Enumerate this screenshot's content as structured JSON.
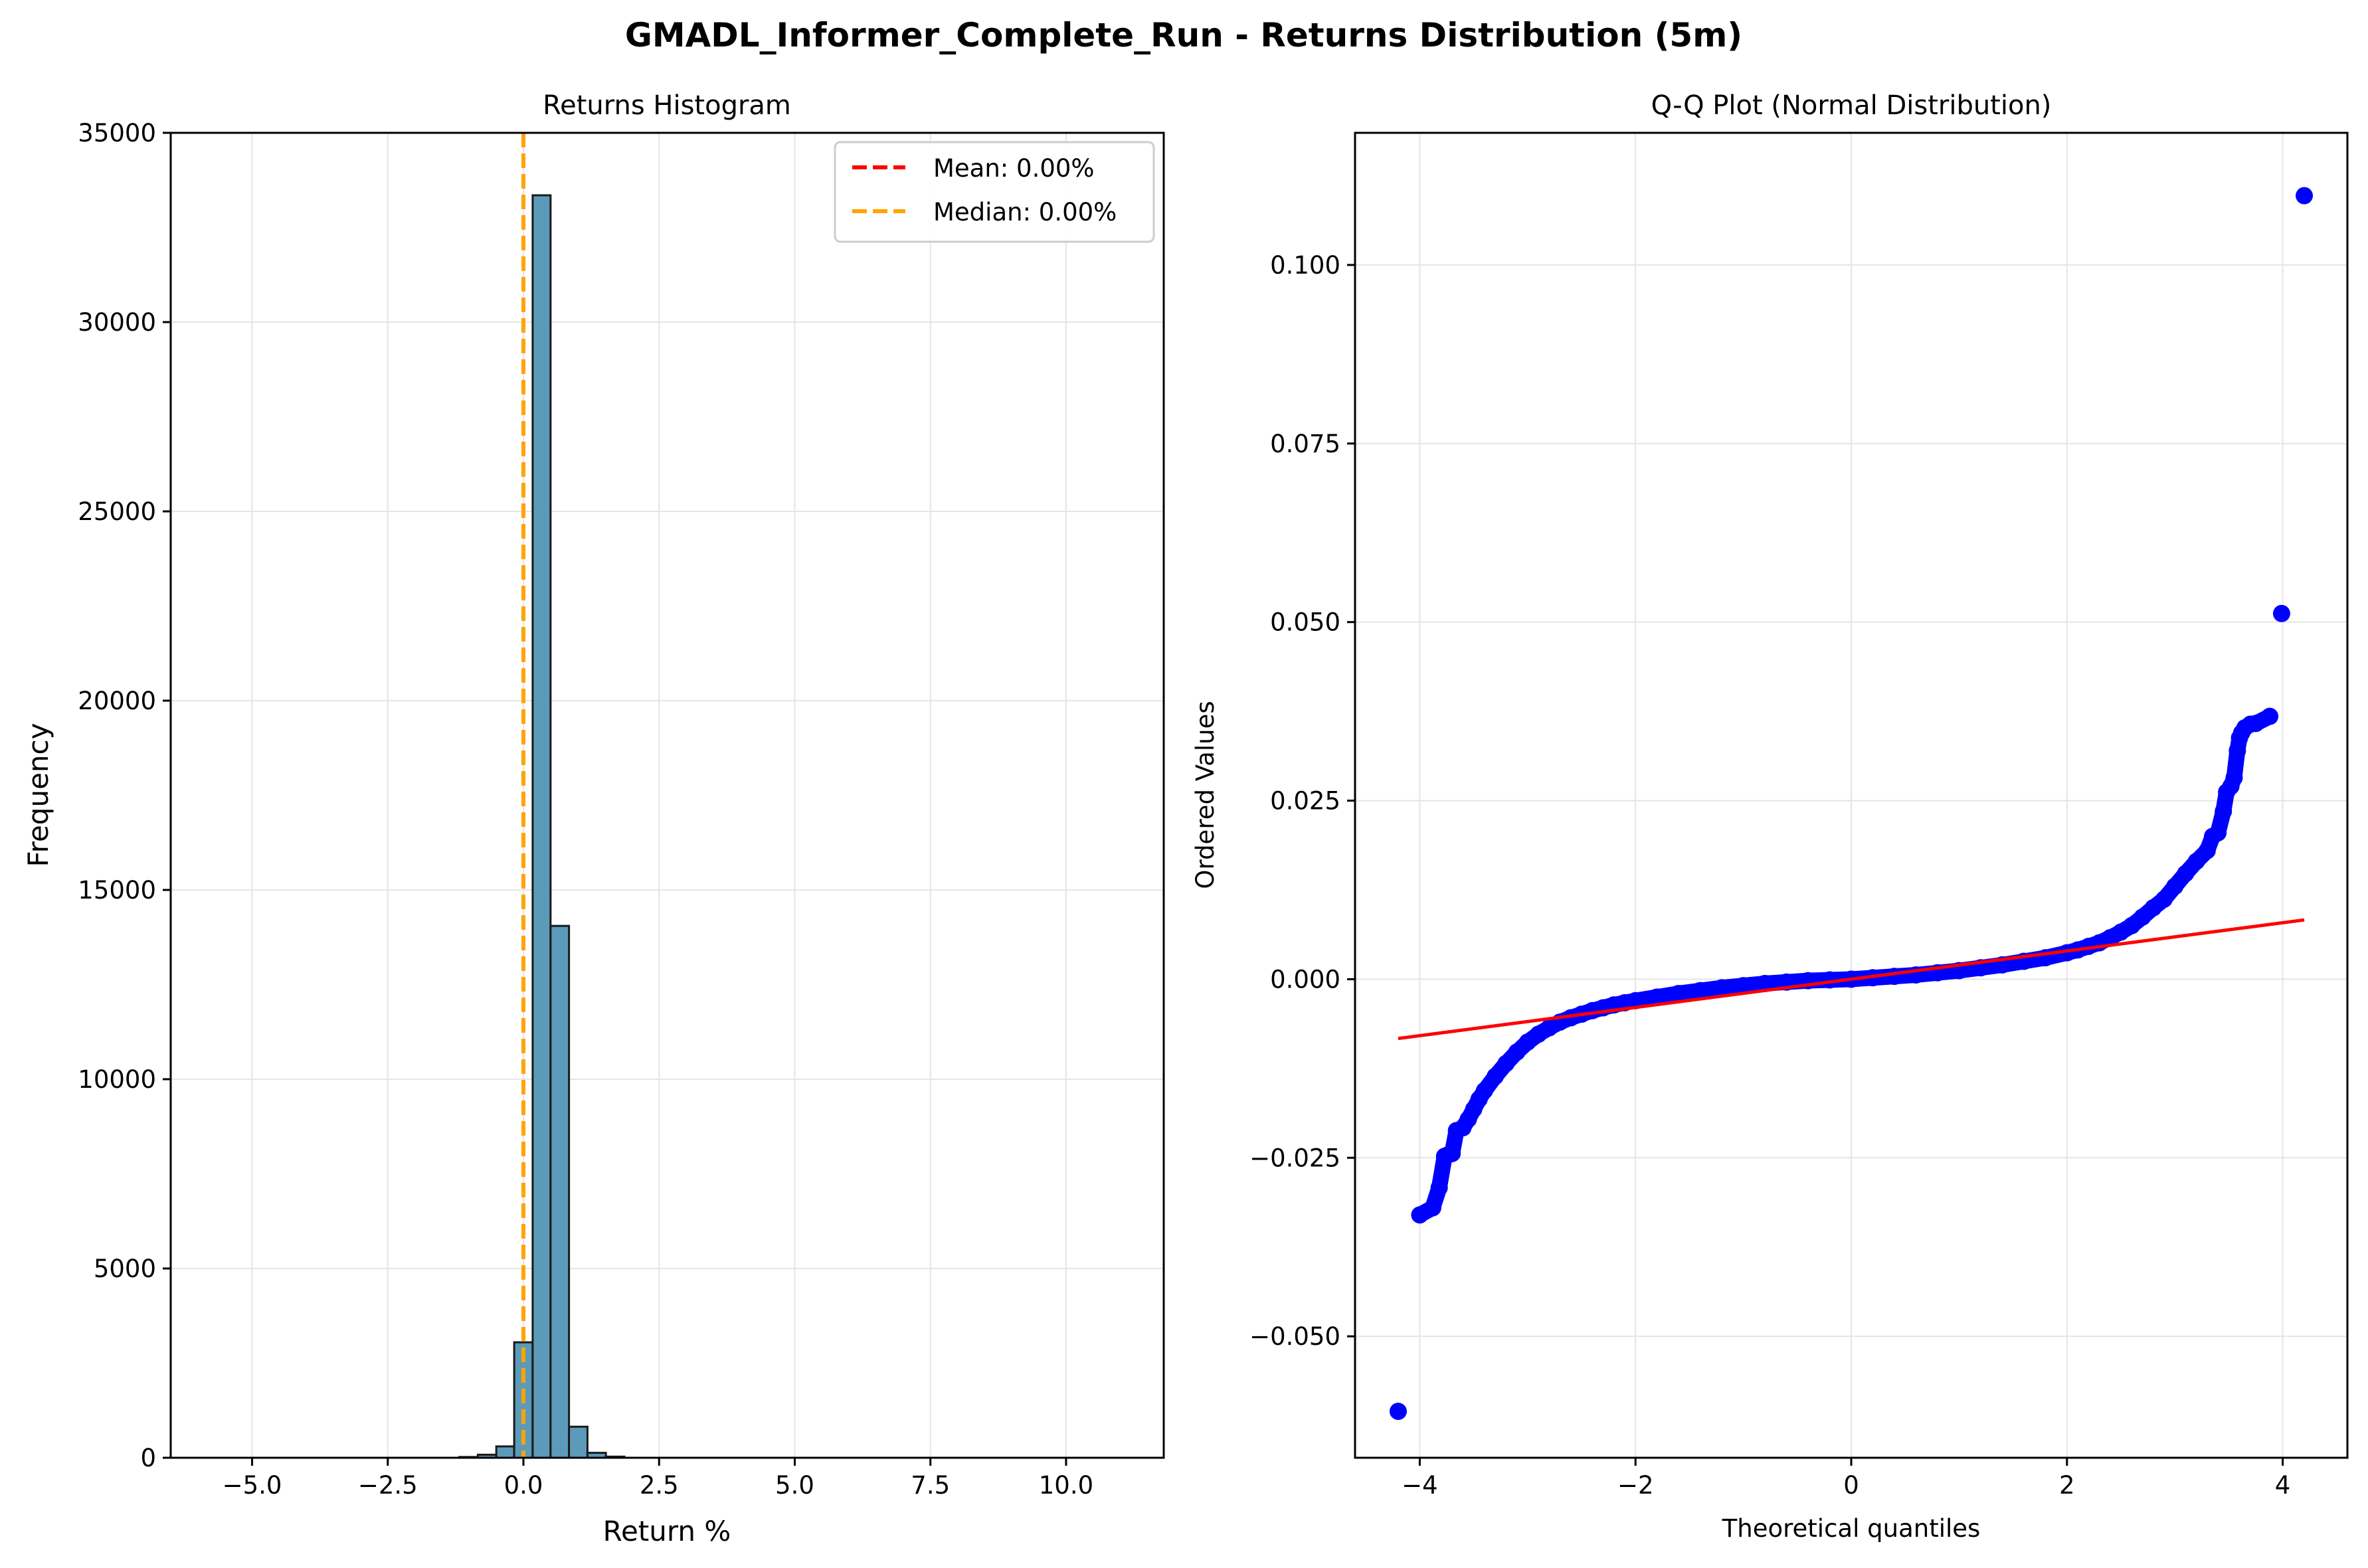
{
  "figure_title": "GMADL_Informer_Complete_Run - Returns Distribution (5m)",
  "colors": {
    "hist_fill": "#5b9bb9",
    "hist_edge": "#1a1a1a",
    "mean_line": "#ff0000",
    "median_line": "#ffa500",
    "qq_points": "#0000ff",
    "qq_fit": "#ff0000",
    "grid": "#e5e5e5"
  },
  "chart_data": [
    {
      "type": "bar",
      "title": "Returns Histogram",
      "xlabel": "Return %",
      "ylabel": "Frequency",
      "xlim": [
        -6.5,
        11.8
      ],
      "ylim": [
        0,
        35000
      ],
      "xticks": [
        -5.0,
        -2.5,
        0.0,
        2.5,
        5.0,
        7.5,
        10.0
      ],
      "xtick_labels": [
        "−5.0",
        "−2.5",
        "0.0",
        "2.5",
        "5.0",
        "7.5",
        "10.0"
      ],
      "yticks": [
        0,
        5000,
        10000,
        15000,
        20000,
        25000,
        30000,
        35000
      ],
      "ytick_labels": [
        "0",
        "5000",
        "10000",
        "15000",
        "20000",
        "25000",
        "30000",
        "35000"
      ],
      "grid": true,
      "legend_position": "top-right",
      "bins": [
        {
          "x0": -1.18,
          "x1": -0.84,
          "value": 20
        },
        {
          "x0": -0.84,
          "x1": -0.5,
          "value": 80
        },
        {
          "x0": -0.5,
          "x1": -0.17,
          "value": 300
        },
        {
          "x0": -0.17,
          "x1": 0.17,
          "value": 3050
        },
        {
          "x0": 0.17,
          "x1": 0.5,
          "value": 33350
        },
        {
          "x0": 0.5,
          "x1": 0.84,
          "value": 14050
        },
        {
          "x0": 0.84,
          "x1": 1.18,
          "value": 820
        },
        {
          "x0": 1.18,
          "x1": 1.52,
          "value": 130
        },
        {
          "x0": 1.52,
          "x1": 1.86,
          "value": 30
        }
      ],
      "vlines": [
        {
          "name": "Mean: 0.00%",
          "x": 0.0,
          "style": "dashed",
          "color_key": "mean_line"
        },
        {
          "name": "Median: 0.00%",
          "x": 0.0,
          "style": "dashed",
          "color_key": "median_line"
        }
      ]
    },
    {
      "type": "scatter",
      "title": "Q-Q Plot (Normal Distribution)",
      "xlabel": "Theoretical quantiles",
      "ylabel": "Ordered Values",
      "xlim": [
        -4.6,
        4.6
      ],
      "ylim": [
        -0.067,
        0.1185
      ],
      "xticks": [
        -4,
        -2,
        0,
        2,
        4
      ],
      "xtick_labels": [
        "−4",
        "−2",
        "0",
        "2",
        "4"
      ],
      "yticks": [
        -0.05,
        -0.025,
        0.0,
        0.025,
        0.05,
        0.075,
        0.1
      ],
      "ytick_labels": [
        "−0.050",
        "−0.025",
        "0.000",
        "0.025",
        "0.050",
        "0.075",
        "0.100"
      ],
      "grid": true,
      "fit_line": {
        "x": [
          -4.2,
          4.2
        ],
        "y": [
          -0.0083,
          0.0083
        ]
      },
      "points": {
        "x": [
          -4.2,
          -4.0,
          -3.88,
          -3.82,
          -3.77,
          -3.74,
          -3.7,
          -3.66,
          -3.6,
          -3.55,
          -3.5,
          -3.45,
          -3.4,
          -3.3,
          -3.2,
          -3.1,
          -3.0,
          -2.9,
          -2.8,
          -2.7,
          -2.6,
          -2.5,
          -2.4,
          -2.3,
          -2.2,
          -2.1,
          -2.0,
          -1.8,
          -1.6,
          -1.4,
          -1.2,
          -1.0,
          -0.8,
          -0.6,
          -0.4,
          -0.2,
          0.0,
          0.2,
          0.4,
          0.6,
          0.8,
          1.0,
          1.2,
          1.4,
          1.6,
          1.8,
          2.0,
          2.1,
          2.2,
          2.3,
          2.4,
          2.5,
          2.6,
          2.7,
          2.8,
          2.9,
          3.0,
          3.1,
          3.2,
          3.3,
          3.35,
          3.4,
          3.45,
          3.48,
          3.52,
          3.55,
          3.58,
          3.6,
          3.62,
          3.65,
          3.7,
          3.75,
          3.88,
          3.99,
          4.2
        ],
        "y": [
          -0.0605,
          -0.033,
          -0.032,
          -0.0292,
          -0.0248,
          -0.0246,
          -0.0244,
          -0.0212,
          -0.0208,
          -0.0196,
          -0.0182,
          -0.0168,
          -0.0156,
          -0.0136,
          -0.0118,
          -0.0102,
          -0.0088,
          -0.0077,
          -0.0068,
          -0.006,
          -0.0054,
          -0.0049,
          -0.0044,
          -0.004,
          -0.0036,
          -0.0033,
          -0.003,
          -0.0025,
          -0.002,
          -0.0016,
          -0.0012,
          -0.0009,
          -0.0006,
          -0.0004,
          -0.0002,
          -0.0001,
          0.0,
          0.0002,
          0.0004,
          0.0006,
          0.0009,
          0.0012,
          0.0016,
          0.002,
          0.0025,
          0.003,
          0.0037,
          0.0041,
          0.0046,
          0.0051,
          0.0058,
          0.0066,
          0.0075,
          0.0087,
          0.01,
          0.0112,
          0.013,
          0.0148,
          0.0165,
          0.018,
          0.02,
          0.0205,
          0.0235,
          0.0262,
          0.027,
          0.0282,
          0.032,
          0.0338,
          0.0345,
          0.0352,
          0.0357,
          0.0358,
          0.0368,
          0.0512,
          0.1097
        ]
      }
    }
  ]
}
